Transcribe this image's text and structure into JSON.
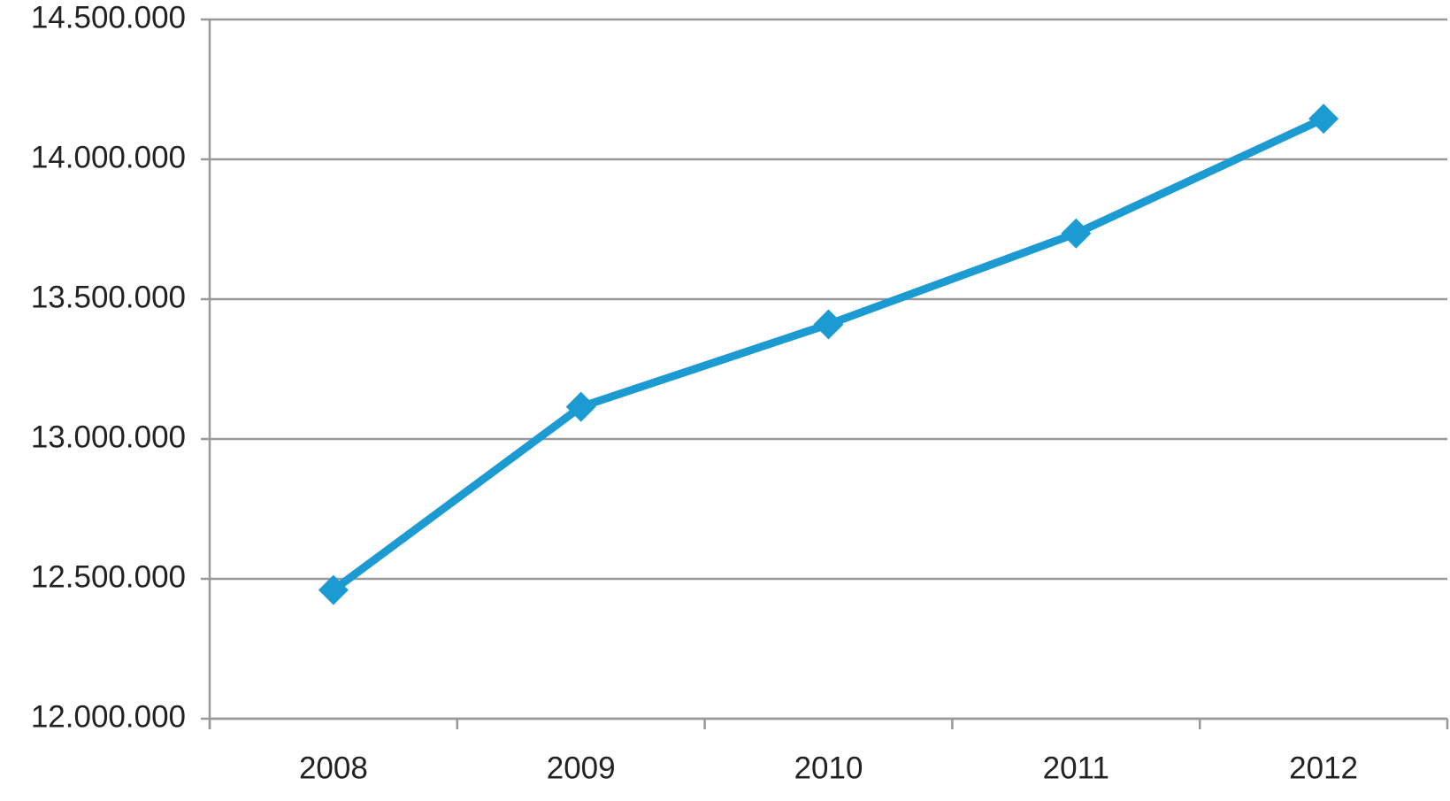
{
  "chart_data": {
    "type": "line",
    "categories": [
      "2008",
      "2009",
      "2010",
      "2011",
      "2012"
    ],
    "values": [
      12460000,
      13115000,
      13410000,
      13735000,
      14145000
    ],
    "color": "#1b9bd1",
    "ylim": [
      12000000,
      14500000
    ],
    "yticks": [
      {
        "value": 12000000,
        "label": "12.000.000"
      },
      {
        "value": 12500000,
        "label": "12.500.000"
      },
      {
        "value": 13000000,
        "label": "13.000.000"
      },
      {
        "value": 13500000,
        "label": "13.500.000"
      },
      {
        "value": 14000000,
        "label": "14.000.000"
      },
      {
        "value": 14500000,
        "label": "14.500.000"
      }
    ],
    "grid": true
  }
}
